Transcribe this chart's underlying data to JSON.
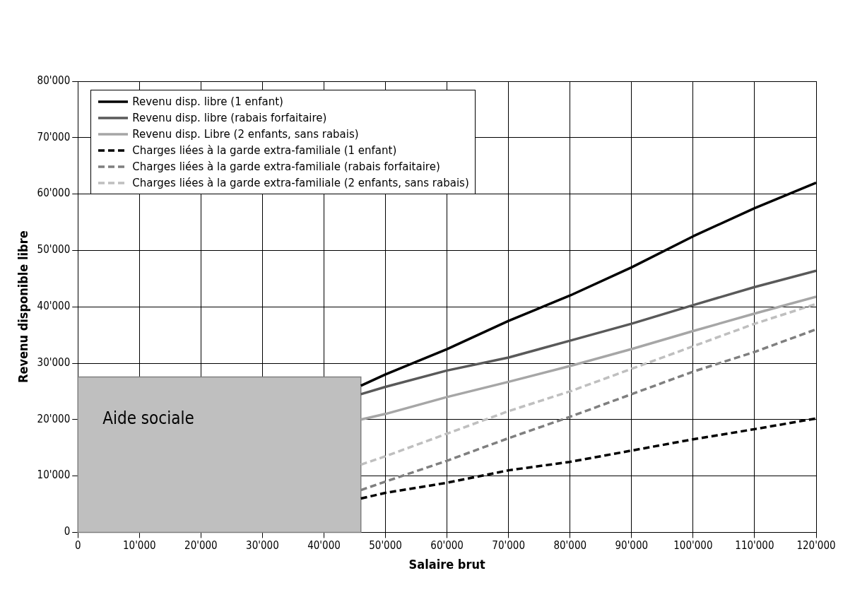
{
  "chart_data": {
    "type": "line",
    "xlabel": "Salaire brut",
    "ylabel": "Revenu disponible libre",
    "x": [
      46000,
      50000,
      60000,
      70000,
      80000,
      90000,
      100000,
      110000,
      120000
    ],
    "series": [
      {
        "name": "Revenu disp. libre (1 enfant)",
        "color": "#000000",
        "line_style": "solid",
        "values": [
          26000,
          28000,
          32500,
          37500,
          42000,
          47000,
          52500,
          57500,
          62000
        ]
      },
      {
        "name": "Revenu disp. libre (rabais forfaitaire)",
        "color": "#595959",
        "line_style": "solid",
        "values": [
          24500,
          25800,
          28700,
          31000,
          34000,
          37000,
          40300,
          43500,
          46400
        ]
      },
      {
        "name": "Revenu disp. Libre (2 enfants, sans rabais)",
        "color": "#a6a6a6",
        "line_style": "solid",
        "values": [
          20000,
          21000,
          24000,
          26700,
          29500,
          32500,
          35700,
          38800,
          41800
        ]
      },
      {
        "name": "Charges liées à la garde extra-familiale (1 enfant)",
        "color": "#000000",
        "line_style": "dashed",
        "values": [
          6000,
          7000,
          8800,
          11000,
          12500,
          14500,
          16500,
          18300,
          20200
        ]
      },
      {
        "name": "Charges liées à la garde extra-familiale (rabais forfaitaire)",
        "color": "#7f7f7f",
        "line_style": "dashed",
        "values": [
          7500,
          9000,
          12700,
          16700,
          20500,
          24500,
          28500,
          32000,
          36000
        ]
      },
      {
        "name": "Charges liées à la garde extra-familiale (2 enfants, sans rabais)",
        "color": "#bfbfbf",
        "line_style": "dashed",
        "values": [
          12000,
          13500,
          17500,
          21500,
          25000,
          29000,
          33000,
          37000,
          40500
        ]
      }
    ],
    "xlim": [
      0,
      120000
    ],
    "xticks": [
      {
        "value": 0,
        "label": "0"
      },
      {
        "value": 10000,
        "label": "10'000"
      },
      {
        "value": 20000,
        "label": "20'000"
      },
      {
        "value": 30000,
        "label": "30'000"
      },
      {
        "value": 40000,
        "label": "40'000"
      },
      {
        "value": 50000,
        "label": "50'000"
      },
      {
        "value": 60000,
        "label": "60'000"
      },
      {
        "value": 70000,
        "label": "70'000"
      },
      {
        "value": 80000,
        "label": "80'000"
      },
      {
        "value": 90000,
        "label": "90'000"
      },
      {
        "value": 100000,
        "label": "100'000"
      },
      {
        "value": 110000,
        "label": "110'000"
      },
      {
        "value": 120000,
        "label": "120'000"
      }
    ],
    "ylim": [
      0,
      80000
    ],
    "yticks": [
      {
        "value": 0,
        "label": "0"
      },
      {
        "value": 10000,
        "label": "10'000"
      },
      {
        "value": 20000,
        "label": "20'000"
      },
      {
        "value": 30000,
        "label": "30'000"
      },
      {
        "value": 40000,
        "label": "40'000"
      },
      {
        "value": 50000,
        "label": "50'000"
      },
      {
        "value": 60000,
        "label": "60'000"
      },
      {
        "value": 70000,
        "label": "70'000"
      },
      {
        "value": 80000,
        "label": "80'000"
      }
    ],
    "bands": [
      {
        "axis": "x",
        "from": 0,
        "to": 46000,
        "label": "Aide sociale",
        "color": "#bfbfbf"
      }
    ],
    "grid": true,
    "legend": "top left",
    "marker": "none"
  }
}
